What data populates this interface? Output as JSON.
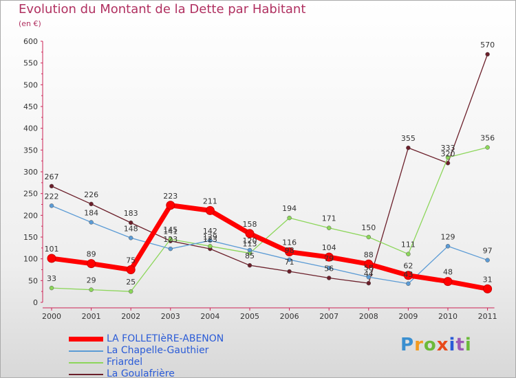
{
  "title": "Evolution du Montant de la Dette par Habitant",
  "subtitle": "(en €)",
  "logo": {
    "text": "Proxiti",
    "colors": [
      "#3a8fd0",
      "#f29a1f",
      "#6cba3a",
      "#e84a1a",
      "#2a5bd7",
      "#9b59b6",
      "#6cba3a"
    ]
  },
  "chart_data": {
    "type": "line",
    "title": "Evolution du Montant de la Dette par Habitant",
    "ylabel": "(en €)",
    "xlabel": "",
    "categories": [
      "2000",
      "2001",
      "2002",
      "2003",
      "2004",
      "2005",
      "2006",
      "2007",
      "2008",
      "2009",
      "2010",
      "2011"
    ],
    "ylim": [
      0,
      600
    ],
    "yticks": [
      0,
      50,
      100,
      150,
      200,
      250,
      300,
      350,
      400,
      450,
      500,
      550,
      600
    ],
    "grid": false,
    "legend_position": "bottom-left",
    "series": [
      {
        "name": "La Goulafrière",
        "color": "#6b1f2a",
        "bold": false,
        "values": [
          267,
          226,
          183,
          141,
          123,
          85,
          71,
          56,
          44,
          355,
          320,
          570
        ]
      },
      {
        "name": "Friardel",
        "color": "#8cd65a",
        "bold": false,
        "values": [
          33,
          29,
          25,
          145,
          129,
          113,
          194,
          171,
          150,
          111,
          333,
          356
        ]
      },
      {
        "name": "La Chapelle-Gauthier",
        "color": "#5b9bd5",
        "bold": false,
        "values": [
          222,
          184,
          148,
          123,
          142,
          120,
          98,
          79,
          58,
          43,
          129,
          97
        ]
      },
      {
        "name": "LA FOLLETIèRE-ABENON",
        "color": "#ff0000",
        "bold": true,
        "values": [
          101,
          89,
          75,
          223,
          211,
          158,
          116,
          104,
          88,
          62,
          48,
          31
        ]
      }
    ],
    "legend_order": [
      "LA FOLLETIèRE-ABENON",
      "La Chapelle-Gauthier",
      "Friardel",
      "La Goulafrière"
    ]
  }
}
